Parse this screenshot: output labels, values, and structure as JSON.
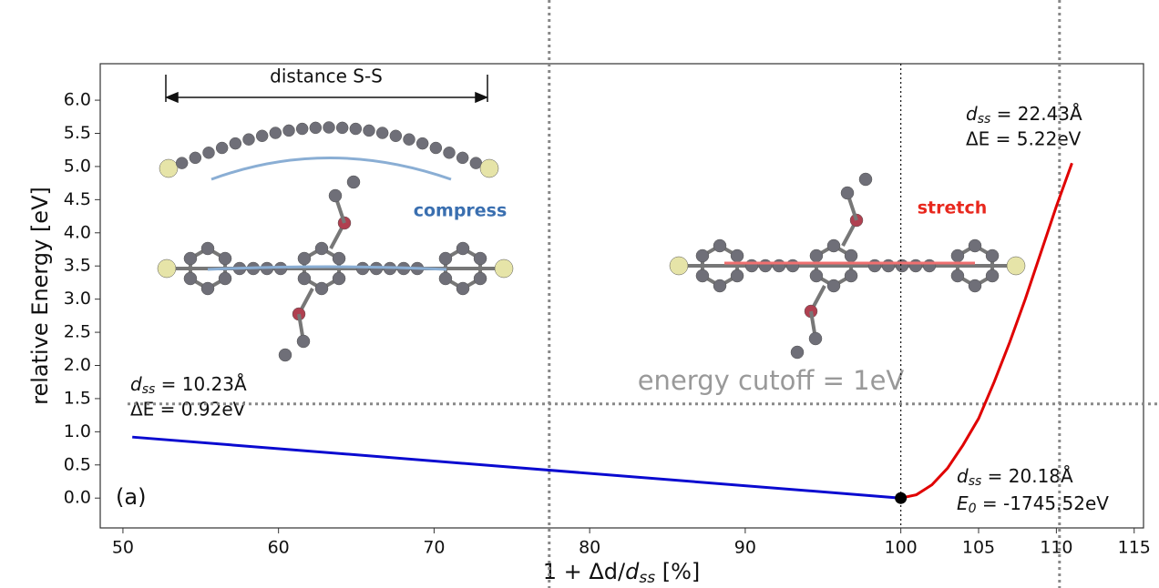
{
  "chart_data": {
    "type": "line",
    "xlabel": {
      "main": "1 + Δd/",
      "symbol": "d",
      "subscript": "ss",
      "suffix": " [%]"
    },
    "ylabel": "relative Energy [eV]",
    "xlim": [
      48.54,
      115.6
    ],
    "ylim": [
      -0.45,
      6.55
    ],
    "xticks": [
      50,
      60,
      70,
      80,
      90,
      100,
      105,
      110,
      115
    ],
    "yticks": [
      {
        "value": 0,
        "label": "0.0"
      },
      {
        "value": 0.5,
        "label": "0.5"
      },
      {
        "value": 1,
        "label": "1.0"
      },
      {
        "value": 1.5,
        "label": "1.5"
      },
      {
        "value": 2,
        "label": "2.0"
      },
      {
        "value": 2.5,
        "label": "2.5"
      },
      {
        "value": 3,
        "label": "3.0"
      },
      {
        "value": 3.5,
        "label": "3.5"
      },
      {
        "value": 4,
        "label": "4.0"
      },
      {
        "value": 4.5,
        "label": "4.5"
      },
      {
        "value": 5,
        "label": "5.0"
      },
      {
        "value": 5.5,
        "label": "5.5"
      },
      {
        "value": 6,
        "label": "6.0"
      }
    ],
    "series": [
      {
        "color": "#0a0ad0",
        "x": [
          50.6,
          100
        ],
        "values": [
          0.92,
          0
        ]
      },
      {
        "color": "#e00000",
        "x": [
          100,
          101,
          102,
          103,
          104,
          105,
          106,
          107,
          108,
          109,
          110,
          111
        ],
        "values": [
          0,
          0.05,
          0.2,
          0.45,
          0.8,
          1.2,
          1.75,
          2.35,
          3.0,
          3.7,
          4.4,
          5.05
        ]
      }
    ],
    "marker": {
      "x": 100,
      "y": 0
    },
    "dotted_vline": 100,
    "reflines": {
      "h": [
        1.42
      ],
      "v": [
        77.4,
        110.2
      ]
    },
    "annotations": {
      "panel": "(a)",
      "distance": "distance S-S",
      "compress": "compress",
      "stretch": "stretch",
      "cutoff": "energy cutoff = 1eV",
      "left": {
        "symbol": "d",
        "subscript": "ss",
        "text": " = 10.23Å",
        "energy": "ΔE = 0.92eV"
      },
      "top": {
        "symbol": "d",
        "subscript": "ss",
        "text": " = 22.43Å",
        "energy": "ΔE = 5.22eV"
      },
      "bottom": {
        "symbol": "d",
        "subscript": "ss",
        "text": " = 20.18Å",
        "esym": "E",
        "esub": "0",
        "energy": " = -1745.52eV"
      }
    }
  }
}
